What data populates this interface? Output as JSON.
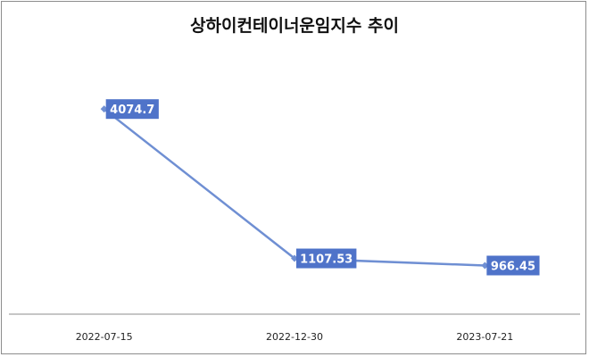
{
  "chart_data": {
    "type": "line",
    "title": "상하이컨테이너운임지수 추이",
    "categories": [
      "2022-07-15",
      "2022-12-30",
      "2023-07-21"
    ],
    "series": [
      {
        "values": [
          4074.7,
          1107.53,
          966.45
        ],
        "data_labels": [
          "4074.7",
          "1107.53",
          "966.45"
        ]
      }
    ],
    "xlabel": "",
    "ylabel": "",
    "ylim": [
      0,
      5000
    ],
    "grid": false,
    "legend": "none",
    "colors": {
      "line": "#6f8fd3",
      "label_bg": "#4f73c9",
      "axis": "#8c8c8c"
    }
  }
}
